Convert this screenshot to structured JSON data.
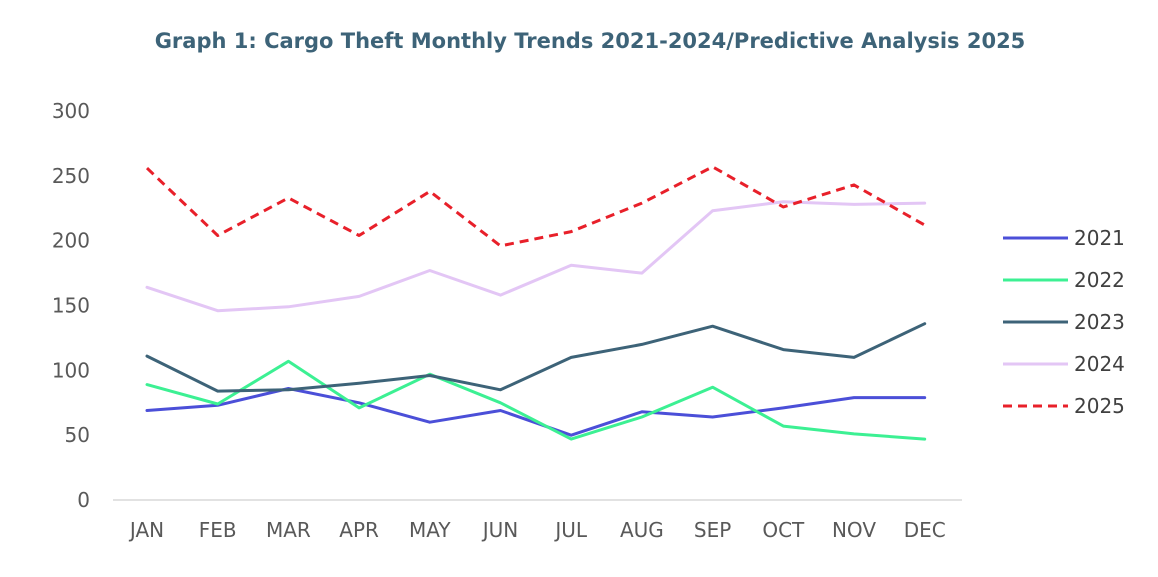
{
  "chart_data": {
    "type": "line",
    "title": "Graph 1: Cargo Theft Monthly Trends 2021-2024/Predictive Analysis 2025",
    "xlabel": "",
    "ylabel": "",
    "categories": [
      "JAN",
      "FEB",
      "MAR",
      "APR",
      "MAY",
      "JUN",
      "JUL",
      "AUG",
      "SEP",
      "OCT",
      "NOV",
      "DEC"
    ],
    "ylim": [
      0,
      300
    ],
    "yticks": [
      0,
      50,
      100,
      150,
      200,
      250,
      300
    ],
    "grid": false,
    "legend": "right",
    "series": [
      {
        "name": "2021",
        "color": "#4b4fd8",
        "dash": "solid",
        "values": [
          69,
          73,
          86,
          75,
          60,
          69,
          50,
          68,
          64,
          71,
          79,
          79
        ]
      },
      {
        "name": "2022",
        "color": "#3cf093",
        "dash": "solid",
        "values": [
          89,
          74,
          107,
          71,
          97,
          75,
          47,
          64,
          87,
          57,
          51,
          47
        ]
      },
      {
        "name": "2023",
        "color": "#3d6378",
        "dash": "solid",
        "values": [
          111,
          84,
          85,
          90,
          96,
          85,
          110,
          120,
          134,
          116,
          110,
          136
        ]
      },
      {
        "name": "2024",
        "color": "#e3c6f5",
        "dash": "solid",
        "values": [
          164,
          146,
          149,
          157,
          177,
          158,
          181,
          175,
          223,
          230,
          228,
          229
        ]
      },
      {
        "name": "2025",
        "color": "#e8202a",
        "dash": "dashed",
        "values": [
          256,
          204,
          233,
          204,
          238,
          196,
          207,
          229,
          257,
          226,
          243,
          212
        ]
      }
    ]
  }
}
